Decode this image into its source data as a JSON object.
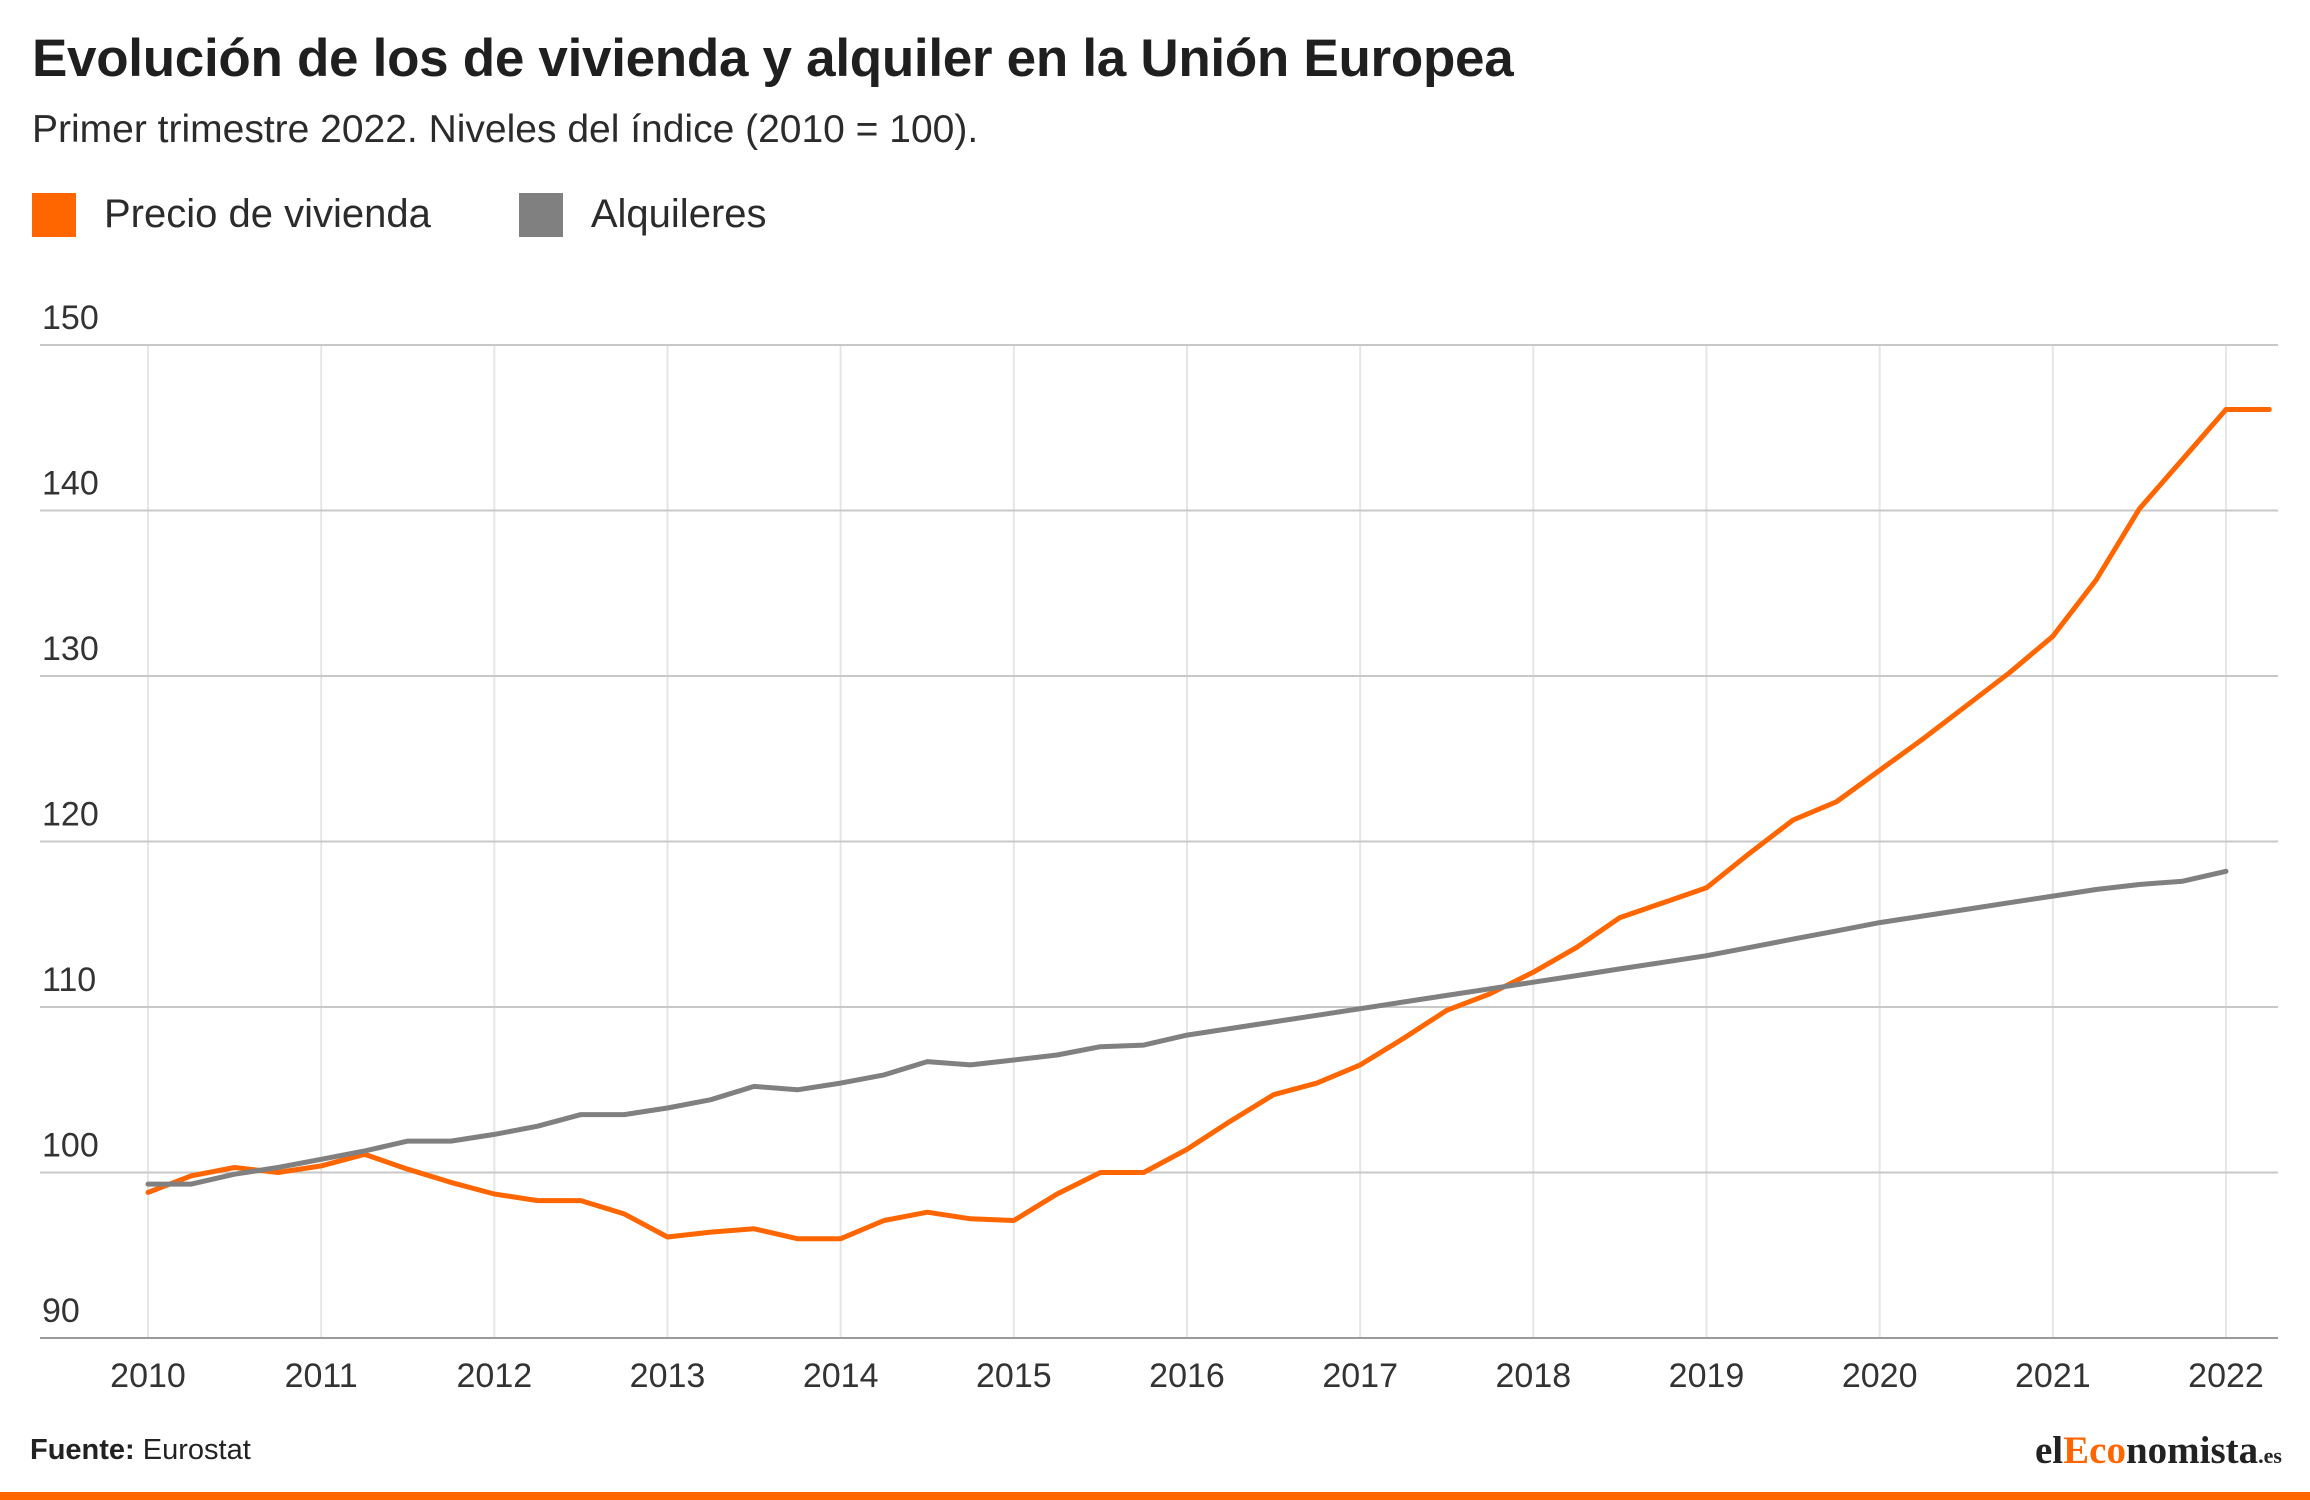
{
  "title": "Evolución de los de vivienda y alquiler en la Unión Europea",
  "subtitle": "Primer trimestre 2022. Niveles del índice (2010 = 100).",
  "source_label": "Fuente:",
  "source_value": "Eurostat",
  "brand": {
    "part1": "el",
    "part2": "Eco",
    "part3": "nomista",
    "tld": ".es"
  },
  "colors": {
    "vivienda": "#ff6600",
    "alquileres": "#808080",
    "grid": "#c8c8c8",
    "brand_accent": "#ff6600"
  },
  "chart_data": {
    "type": "line",
    "title": "Evolución de los de vivienda y alquiler en la Unión Europea",
    "subtitle": "Primer trimestre 2022. Niveles del índice (2010 = 100).",
    "xlabel": "",
    "ylabel": "",
    "ylim": [
      90,
      150
    ],
    "xlim": [
      2010,
      2022.25
    ],
    "yticks": [
      90,
      100,
      110,
      120,
      130,
      140,
      150
    ],
    "xticks": [
      2010,
      2011,
      2012,
      2013,
      2014,
      2015,
      2016,
      2017,
      2018,
      2019,
      2020,
      2021,
      2022
    ],
    "grid": true,
    "legend": "top-left",
    "series": [
      {
        "name": "Precio de vivienda",
        "color": "#ff6600",
        "x": [
          2010.0,
          2010.25,
          2010.5,
          2010.75,
          2011.0,
          2011.25,
          2011.5,
          2011.75,
          2012.0,
          2012.25,
          2012.5,
          2012.75,
          2013.0,
          2013.25,
          2013.5,
          2013.75,
          2014.0,
          2014.25,
          2014.5,
          2014.75,
          2015.0,
          2015.25,
          2015.5,
          2015.75,
          2016.0,
          2016.25,
          2016.5,
          2016.75,
          2017.0,
          2017.25,
          2017.5,
          2017.75,
          2018.0,
          2018.25,
          2018.5,
          2018.75,
          2019.0,
          2019.25,
          2019.5,
          2019.75,
          2020.0,
          2020.25,
          2020.5,
          2020.75,
          2021.0,
          2021.25,
          2021.5,
          2021.75,
          2022.0,
          2022.25
        ],
        "values": [
          98.8,
          99.8,
          100.3,
          100.0,
          100.4,
          101.1,
          100.2,
          99.4,
          98.7,
          98.3,
          98.3,
          97.5,
          96.1,
          96.4,
          96.6,
          96.0,
          96.0,
          97.1,
          97.6,
          97.2,
          97.1,
          98.7,
          100.0,
          100.0,
          101.4,
          103.1,
          104.7,
          105.4,
          106.5,
          108.1,
          109.8,
          110.8,
          112.1,
          113.6,
          115.4,
          116.3,
          117.2,
          119.3,
          121.3,
          122.4,
          124.3,
          126.2,
          128.2,
          130.2,
          132.4,
          135.8,
          140.1,
          143.1,
          146.1,
          146.1
        ]
      },
      {
        "name": "Alquileres",
        "color": "#808080",
        "x": [
          2010.0,
          2010.25,
          2010.5,
          2010.75,
          2011.0,
          2011.25,
          2011.5,
          2011.75,
          2012.0,
          2012.25,
          2012.5,
          2012.75,
          2013.0,
          2013.25,
          2013.5,
          2013.75,
          2014.0,
          2014.25,
          2014.5,
          2014.75,
          2015.0,
          2015.25,
          2015.5,
          2015.75,
          2016.0,
          2016.25,
          2016.5,
          2016.75,
          2017.0,
          2017.25,
          2017.5,
          2017.75,
          2018.0,
          2018.25,
          2018.5,
          2018.75,
          2019.0,
          2019.25,
          2019.5,
          2019.75,
          2020.0,
          2020.25,
          2020.5,
          2020.75,
          2021.0,
          2021.25,
          2021.5,
          2021.75,
          2022.0
        ],
        "values": [
          99.3,
          99.3,
          99.9,
          100.3,
          100.8,
          101.3,
          101.9,
          101.9,
          102.3,
          102.8,
          103.5,
          103.5,
          103.9,
          104.4,
          105.2,
          105.0,
          105.4,
          105.9,
          106.7,
          106.5,
          106.8,
          107.1,
          107.6,
          107.7,
          108.3,
          108.7,
          109.1,
          109.5,
          109.9,
          110.3,
          110.7,
          111.1,
          111.5,
          111.9,
          112.3,
          112.7,
          113.1,
          113.6,
          114.1,
          114.6,
          115.1,
          115.5,
          115.9,
          116.3,
          116.7,
          117.1,
          117.4,
          117.6,
          118.2
        ]
      }
    ]
  }
}
